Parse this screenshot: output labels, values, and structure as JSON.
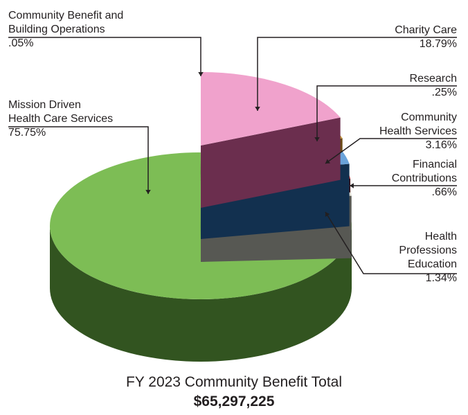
{
  "chart_data": {
    "type": "pie",
    "style": "3d-exploded",
    "title": "FY 2023 Community Benefit Total",
    "total": "$65,297,225",
    "slices": [
      {
        "label": "Charity Care",
        "value": 18.79,
        "value_label": "18.79%",
        "color": "#f0a2cc",
        "side_color": "#6b2e4e"
      },
      {
        "label": "Research",
        "value": 0.25,
        "value_label": ".25%",
        "color": "#c69a3c",
        "side_color": "#6b4a17"
      },
      {
        "label": "Community Health Services",
        "value": 3.16,
        "value_label": "3.16%",
        "color": "#6aa3da",
        "side_color": "#12304f"
      },
      {
        "label": "Financial Contributions",
        "value": 0.66,
        "value_label": ".66%",
        "color": "#d62b2b",
        "side_color": "#3b0c12"
      },
      {
        "label": "Health Professions Education",
        "value": 1.34,
        "value_label": "1.34%",
        "color": "#e0dfd6",
        "side_color": "#575853"
      },
      {
        "label": "Mission Driven Health Care Services",
        "value": 75.75,
        "value_label": "75.75%",
        "color": "#7dbd55",
        "side_color": "#325420"
      },
      {
        "label": "Community Benefit and Building Operations",
        "value": 0.05,
        "value_label": ".05%",
        "color": "#7dbd55",
        "side_color": "#325420"
      }
    ],
    "labels": {
      "charity_care": [
        "Charity Care",
        "18.79%"
      ],
      "research": [
        "Research",
        ".25%"
      ],
      "community_health": [
        "Community",
        "Health Services",
        "3.16%"
      ],
      "financial": [
        "Financial",
        "Contributions",
        ".66%"
      ],
      "health_prof": [
        "Health",
        "Professions",
        "Education",
        "1.34%"
      ],
      "mission": [
        "Mission Driven",
        "Health Care Services",
        "75.75%"
      ],
      "cb_building": [
        "Community Benefit and",
        "Building Operations",
        ".05%"
      ]
    }
  },
  "footer": {
    "title": "FY 2023 Community Benefit Total",
    "total": "$65,297,225"
  }
}
